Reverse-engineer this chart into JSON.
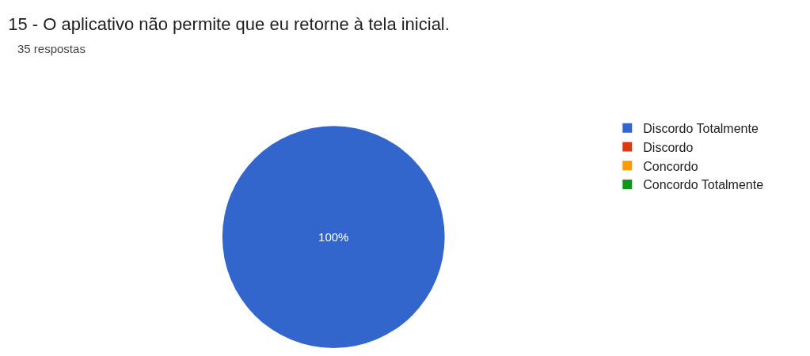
{
  "chart_data": {
    "type": "pie",
    "title": "15 - O aplicativo não permite que eu retorne à tela inicial.",
    "subtitle": "35 respostas",
    "categories": [
      "Discordo Totalmente",
      "Discordo",
      "Concordo",
      "Concordo Totalmente"
    ],
    "values": [
      100,
      0,
      0,
      0
    ],
    "colors": [
      "#3366cc",
      "#dc3912",
      "#ff9900",
      "#109618"
    ],
    "value_labels": [
      "100%",
      null,
      null,
      null
    ],
    "legend": "top right"
  }
}
